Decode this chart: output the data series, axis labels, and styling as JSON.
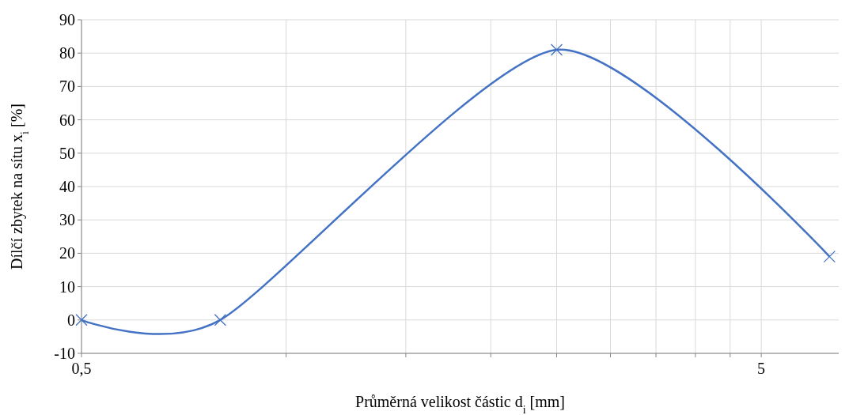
{
  "chart_data": {
    "type": "line",
    "xlabel": "Průměrná velikost částic d$_{i}$ [mm]",
    "ylabel": "Dílčí zbytek na sítu x$_{i}$ [%]",
    "log": "x",
    "xlim": [
      0.5,
      6.5
    ],
    "xticks": [
      {
        "value": 0.5,
        "label": "0,5"
      },
      {
        "value": 1,
        "label": null
      },
      {
        "value": 1.5,
        "label": null
      },
      {
        "value": 2,
        "label": null
      },
      {
        "value": 2.5,
        "label": null
      },
      {
        "value": 3,
        "label": null
      },
      {
        "value": 3.5,
        "label": null
      },
      {
        "value": 4,
        "label": null
      },
      {
        "value": 4.5,
        "label": null
      },
      5
    ],
    "ylim": [
      -10,
      90
    ],
    "yticks": [
      -10,
      0,
      10,
      20,
      30,
      40,
      50,
      60,
      70,
      80,
      90
    ],
    "grid": true,
    "marker": "cross",
    "line_style": "solid",
    "x": [
      0.5,
      0.8,
      2.5,
      6.3
    ],
    "series": [
      {
        "color": "#4472c4",
        "values": [
          0,
          0,
          81,
          19
        ]
      }
    ]
  }
}
